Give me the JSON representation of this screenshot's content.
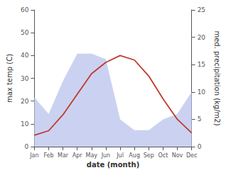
{
  "chart_data": {
    "type": "line",
    "categories": [
      "Jan",
      "Feb",
      "Mar",
      "Apr",
      "May",
      "Jun",
      "Jul",
      "Aug",
      "Sep",
      "Oct",
      "Nov",
      "Dec"
    ],
    "series": [
      {
        "type": "area",
        "color": "#c5cdf0",
        "axis": "y2",
        "values": [
          9,
          6,
          12,
          17,
          17,
          16,
          5,
          3,
          3,
          5,
          6,
          10
        ]
      },
      {
        "type": "line",
        "color": "#c0392b",
        "axis": "y",
        "values": [
          5,
          7,
          14,
          23,
          32,
          37,
          40,
          38,
          31,
          21,
          12,
          6
        ]
      }
    ],
    "x_label": "date (month)",
    "y_label": "max temp (C)",
    "y2_label": "med. precipitation (kg/m2)",
    "ylim": [
      0,
      60
    ],
    "yticks": [
      0,
      10,
      20,
      30,
      40,
      50,
      60
    ],
    "y2lim": [
      0,
      25
    ],
    "y2ticks": [
      0,
      5,
      10,
      15,
      20,
      25
    ],
    "grid": false
  }
}
